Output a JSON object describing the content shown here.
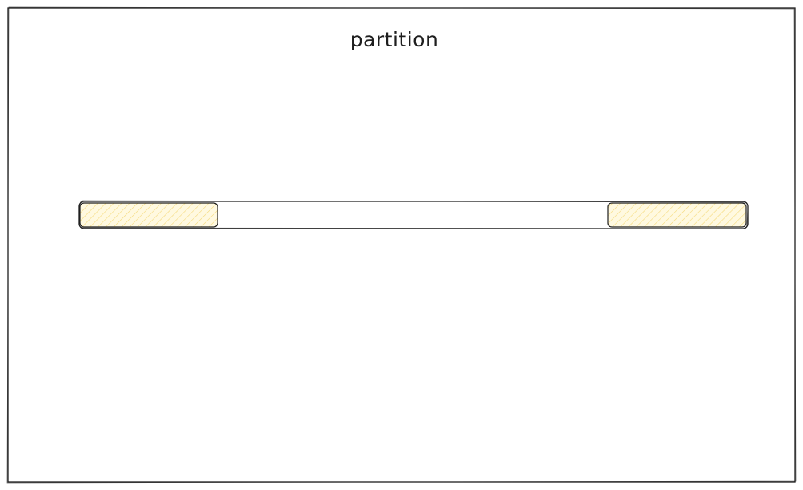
{
  "diagram": {
    "title": "partition",
    "colors": {
      "stroke": "#1e1e1e",
      "background": "#ffffff",
      "highlight_fill": "#fff3bf",
      "hatch": "#f5d97a"
    }
  }
}
